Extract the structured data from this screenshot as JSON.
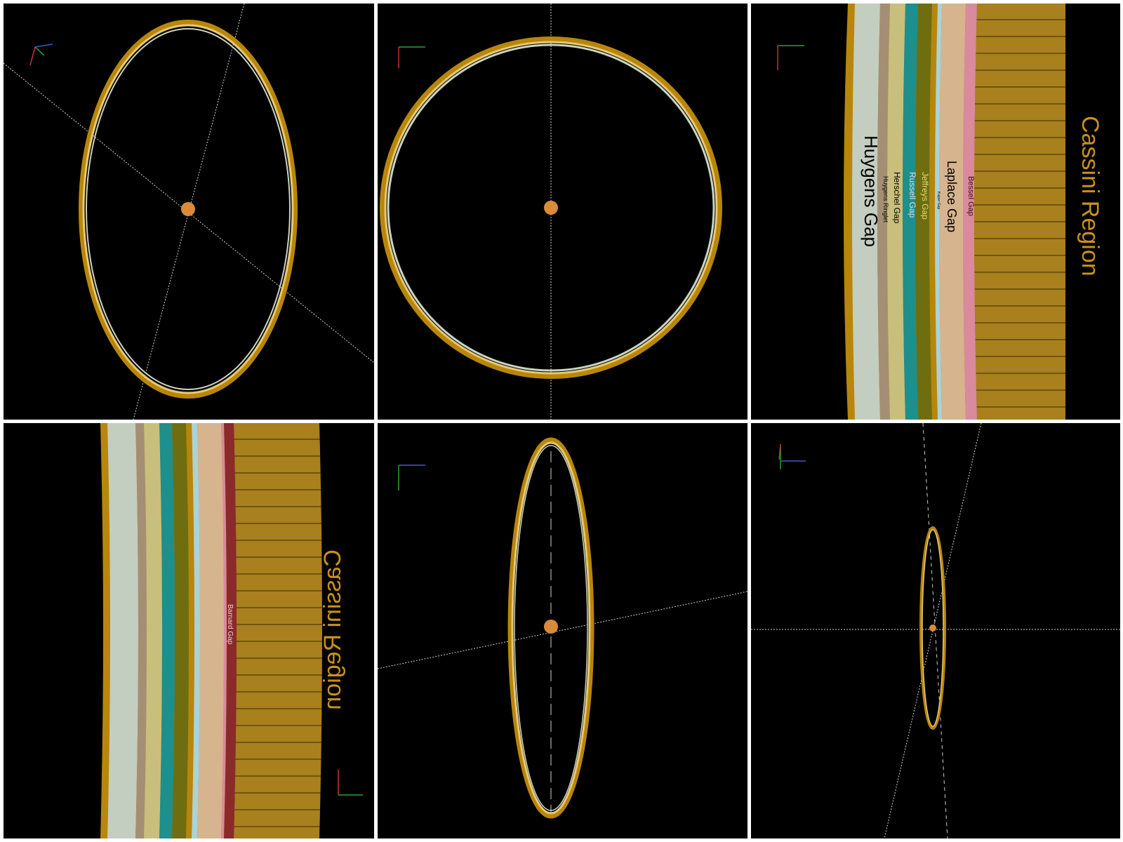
{
  "viewports": {
    "top_left": {
      "view": "oblique-ring"
    },
    "top_center": {
      "view": "face-on-ring"
    },
    "top_right": {
      "view": "zoomed-ring-bands",
      "labels": {
        "huygens_gap": "Huygens Gap",
        "huygens_ringlet": "Huygens Ringlet",
        "herschel_gap": "Herschel Gap",
        "russell_gap": "Russell Gap",
        "jeffreys_gap": "Jeffreys Gap",
        "kuiper_gap": "Kuiper Gap",
        "laplace_gap": "Laplace Gap",
        "bessel_gap": "Bessel Gap",
        "cassini_region": "Cassini Region"
      }
    },
    "bottom_left": {
      "view": "zoomed-ring-bands-mirrored",
      "labels": {
        "barnard_gap": "Barnard Gap",
        "cassini_region": "Cassini Region"
      }
    },
    "bottom_center": {
      "view": "edge-leaning-ring"
    },
    "bottom_right": {
      "view": "distant-ring"
    }
  },
  "colors": {
    "background": "#000000",
    "ring_gold": "#b8860b",
    "ring_light": "#e8c872",
    "ring_pale": "#c8d4c4",
    "planet": "#d98b3a",
    "band_pale_green": "#c3cec0",
    "band_taupe": "#a48f74",
    "band_khaki": "#c9bf7c",
    "band_teal": "#1d8f8c",
    "band_olive": "#6e6e10",
    "band_light_blue": "#a9d3d8",
    "band_tan": "#d6b48e",
    "band_pink": "#d98a9c",
    "band_maroon": "#8b2a2a",
    "cassini_gold": "#a8801e",
    "label_gold": "#c9911c",
    "axis_x": "#3a5bd0",
    "axis_y": "#c83232",
    "axis_z": "#2fa02f"
  }
}
